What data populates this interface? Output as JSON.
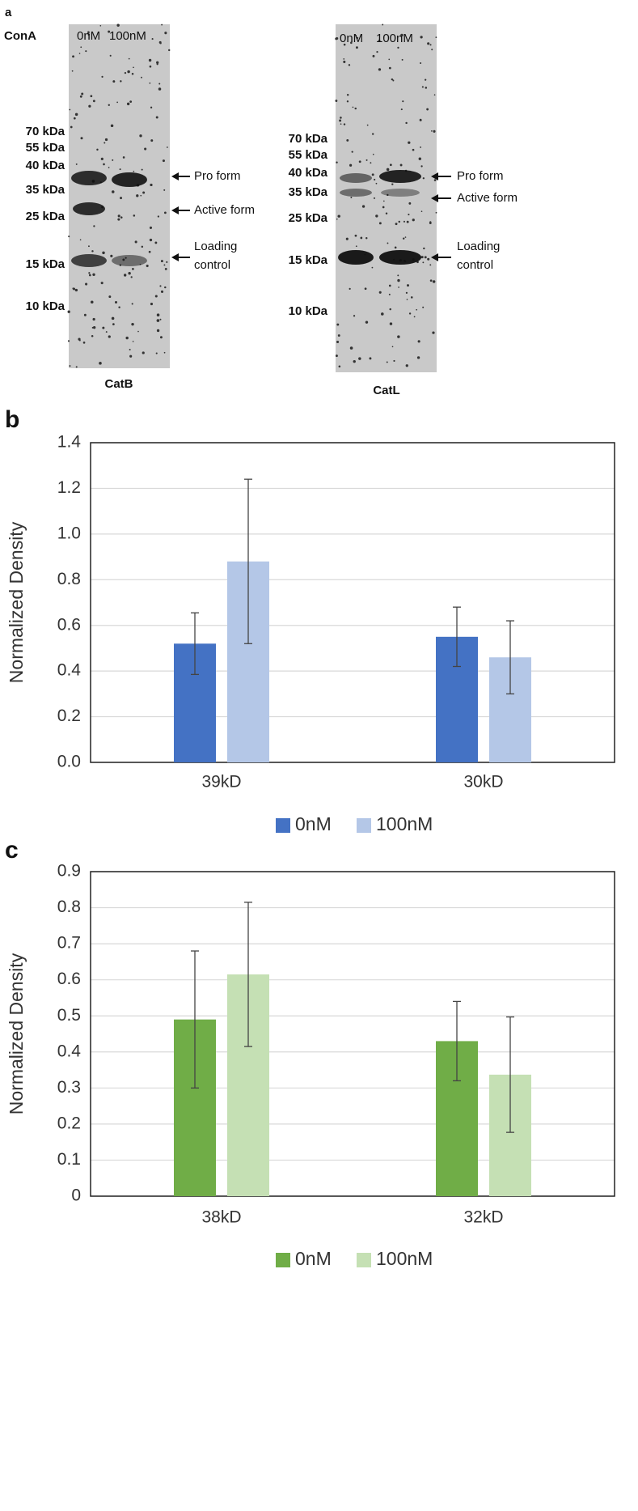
{
  "blot": {
    "panel_label": "a",
    "treatment_label": "ConA",
    "gels": [
      {
        "name": "CatB",
        "lanes": [
          "0nM",
          "100nM"
        ],
        "markers": [
          "70 kDa",
          "55 kDa",
          "40 kDa",
          "35 kDa",
          "25 kDa",
          "15 kDa",
          "10 kDa"
        ],
        "annotations": [
          [
            "Pro form"
          ],
          [
            "Active form"
          ],
          [
            "Loading",
            "control"
          ]
        ]
      },
      {
        "name": "CatL",
        "lanes": [
          "0nM",
          "100nM"
        ],
        "markers": [
          "70 kDa",
          "55 kDa",
          "40 kDa",
          "35 kDa",
          "25 kDa",
          "15 kDa",
          "10 kDa"
        ],
        "annotations": [
          [
            "Pro form"
          ],
          [
            "Active form"
          ],
          [
            "Loading",
            "control"
          ]
        ]
      }
    ]
  },
  "chart_data": [
    {
      "type": "bar",
      "panel_label": "b",
      "ylabel": "Normalized Density",
      "categories": [
        "39kD",
        "30kD"
      ],
      "series": [
        {
          "name": "0nM",
          "color": "#4472c4",
          "values": [
            0.52,
            0.55
          ],
          "errors": [
            0.135,
            0.13
          ]
        },
        {
          "name": "100nM",
          "color": "#b4c7e7",
          "values": [
            0.88,
            0.46
          ],
          "errors": [
            0.36,
            0.16
          ]
        }
      ],
      "ylim": [
        0,
        1.4
      ],
      "yticks": [
        {
          "value": 0,
          "label": "0.0"
        },
        0.2,
        0.4,
        0.6,
        0.8,
        {
          "value": 1,
          "label": "1.0"
        },
        1.2,
        1.4
      ],
      "grid": true,
      "legend": "bottom"
    },
    {
      "type": "bar",
      "panel_label": "c",
      "ylabel": "Normalized Density",
      "categories": [
        "38kD",
        "32kD"
      ],
      "series": [
        {
          "name": "0nM",
          "color": "#70ad47",
          "values": [
            0.49,
            0.43
          ],
          "errors": [
            0.19,
            0.11
          ]
        },
        {
          "name": "100nM",
          "color": "#c5e0b4",
          "values": [
            0.615,
            0.337
          ],
          "errors": [
            0.2,
            0.16
          ]
        }
      ],
      "ylim": [
        0,
        0.9
      ],
      "yticks": [
        0,
        0.1,
        0.2,
        0.3,
        0.4,
        0.5,
        0.6,
        0.7,
        0.8,
        0.9
      ],
      "grid": true,
      "legend": "bottom"
    }
  ]
}
